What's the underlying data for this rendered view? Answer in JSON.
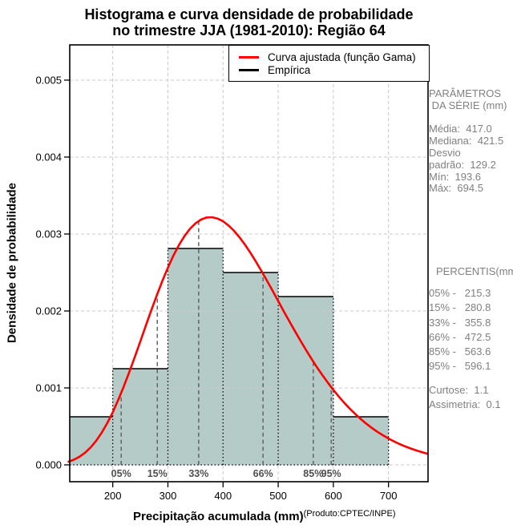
{
  "title": {
    "line1": "Histograma e curva densidade de probabilidade",
    "line2": "no trimestre JJA (1981-2010): Região 64"
  },
  "legend": {
    "items": [
      {
        "label": "Curva ajustada (função Gama)",
        "color": "#ff0000",
        "line_width": 3
      },
      {
        "label": "Empírica",
        "color": "#000000",
        "line_width": 2.5
      }
    ]
  },
  "side_panel": {
    "params_lines": [
      "PARÂMETROS",
      " DA SÉRIE (mm)",
      "",
      "Média:  417.0",
      "Mediana:  421.5",
      "Desvio",
      "padrão:  129.2",
      "Mín:  193.6",
      "Máx:  694.5"
    ],
    "percentis_header": "PERCENTIS(mm)",
    "percentis_lines": [
      "05% -   215.3",
      "15% -   280.8",
      "33% -   355.8",
      "66% -   472.5",
      "85% -   563.6",
      "95% -   596.1"
    ],
    "stats_lines": [
      "Curtose:  1.1",
      "Assimetria:  0.1"
    ]
  },
  "footer": {
    "product": "(Produto:CPTEC/INPE)"
  },
  "chart_data": {
    "type": "histogram",
    "title": "Histograma e curva densidade de probabilidade no trimestre JJA (1981-2010): Região 64",
    "xlabel": "Precipitação acumulada (mm)",
    "ylabel": "Densidade de probabilidade",
    "xlim": [
      122,
      771.7
    ],
    "ylim": [
      -0.000219,
      0.005458
    ],
    "xticks": [
      200,
      300,
      400,
      500,
      600,
      700
    ],
    "yticks": [
      0,
      0.001,
      0.002,
      0.003,
      0.004,
      0.005
    ],
    "grid": true,
    "legend_position": "top-right",
    "histogram": {
      "name": "Empírica",
      "bin_edges": [
        100,
        200,
        300,
        400,
        500,
        600,
        700
      ],
      "densities": [
        0.000625,
        0.00125,
        0.0028125,
        0.0025,
        0.0021875,
        0.000625
      ]
    },
    "fitted_curve": {
      "name": "Curva ajustada (função Gama)",
      "distribution": "gamma",
      "points": [
        [
          120,
          4.1e-05
        ],
        [
          130,
          6.8e-05
        ],
        [
          140,
          0.000107
        ],
        [
          150,
          0.000159
        ],
        [
          160,
          0.000227
        ],
        [
          170,
          0.000313
        ],
        [
          180,
          0.000418
        ],
        [
          190,
          0.000542
        ],
        [
          200,
          0.000684
        ],
        [
          210,
          0.000844
        ],
        [
          220,
          0.001019
        ],
        [
          230,
          0.001206
        ],
        [
          240,
          0.001403
        ],
        [
          250,
          0.001605
        ],
        [
          260,
          0.001809
        ],
        [
          270,
          0.00201
        ],
        [
          280,
          0.002205
        ],
        [
          290,
          0.002391
        ],
        [
          300,
          0.002562
        ],
        [
          310,
          0.002718
        ],
        [
          320,
          0.002856
        ],
        [
          330,
          0.002972
        ],
        [
          340,
          0.003067
        ],
        [
          350,
          0.003138
        ],
        [
          360,
          0.003187
        ],
        [
          370,
          0.003214
        ],
        [
          380,
          0.003218
        ],
        [
          390,
          0.003201
        ],
        [
          400,
          0.003165
        ],
        [
          410,
          0.003111
        ],
        [
          420,
          0.003041
        ],
        [
          430,
          0.002956
        ],
        [
          440,
          0.002859
        ],
        [
          450,
          0.002752
        ],
        [
          460,
          0.002637
        ],
        [
          470,
          0.002515
        ],
        [
          480,
          0.002389
        ],
        [
          490,
          0.00226
        ],
        [
          500,
          0.002129
        ],
        [
          510,
          0.001998
        ],
        [
          520,
          0.001869
        ],
        [
          530,
          0.001742
        ],
        [
          540,
          0.001618
        ],
        [
          550,
          0.001498
        ],
        [
          560,
          0.001383
        ],
        [
          570,
          0.001272
        ],
        [
          580,
          0.001167
        ],
        [
          590,
          0.001068
        ],
        [
          600,
          0.000975
        ],
        [
          610,
          0.000887
        ],
        [
          620,
          0.000805
        ],
        [
          630,
          0.000729
        ],
        [
          640,
          0.000659
        ],
        [
          650,
          0.000594
        ],
        [
          660,
          0.000534
        ],
        [
          670,
          0.000479
        ],
        [
          680,
          0.000429
        ],
        [
          690,
          0.000384
        ],
        [
          700,
          0.000342
        ],
        [
          710,
          0.000305
        ],
        [
          720,
          0.000271
        ],
        [
          730,
          0.00024
        ],
        [
          740,
          0.000213
        ],
        [
          750,
          0.000188
        ],
        [
          760,
          0.000166
        ],
        [
          770,
          0.000146
        ]
      ]
    },
    "percentile_lines": [
      {
        "label": "05%",
        "x": 215.3
      },
      {
        "label": "15%",
        "x": 280.8
      },
      {
        "label": "33%",
        "x": 355.8
      },
      {
        "label": "66%",
        "x": 472.5
      },
      {
        "label": "85%",
        "x": 563.6
      },
      {
        "label": "95%",
        "x": 596.1
      }
    ],
    "series_stats": {
      "mean": 417.0,
      "median": 421.5,
      "sd": 129.2,
      "min": 193.6,
      "max": 694.5,
      "kurtosis": 1.1,
      "skewness": 0.1
    },
    "colors": {
      "bar_fill": "#b5cbc7",
      "bar_border": "#000000",
      "curve": "#ff0000",
      "grid": "#cacaca",
      "percentile_line": "#646464",
      "percentile_label": "#4f4f4f",
      "axis": "#000000"
    }
  }
}
